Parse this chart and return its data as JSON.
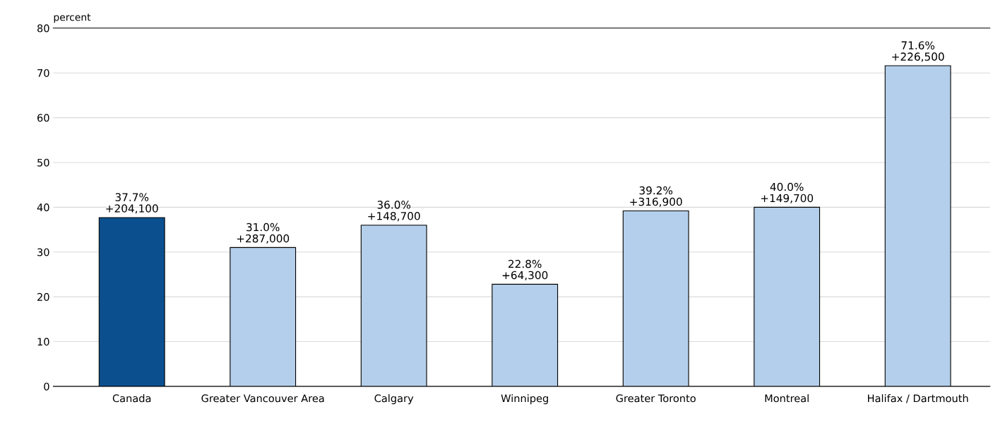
{
  "chart_data": {
    "type": "bar",
    "ylabel": "percent",
    "categories": [
      "Canada",
      "Greater Vancouver Area",
      "Calgary",
      "Winnipeg",
      "Greater Toronto",
      "Montreal",
      "Halifax / Dartmouth"
    ],
    "values": [
      37.7,
      31.0,
      36.0,
      22.8,
      39.2,
      40.0,
      71.6
    ],
    "colors": [
      "#0b4f8f",
      "#b4cfeb",
      "#b4cfeb",
      "#b4cfeb",
      "#b4cfeb",
      "#b4cfeb",
      "#b4cfeb"
    ],
    "value_labels": [
      "37.7%\n+204,100",
      "31.0%\n+287,000",
      "36.0%\n+148,700",
      "22.8%\n+64,300",
      "39.2%\n+316,900",
      "40.0%\n+149,700",
      "71.6%\n+226,500"
    ],
    "ylim": [
      0,
      80
    ],
    "yticks": [
      0,
      10,
      20,
      30,
      40,
      50,
      60,
      70,
      80
    ],
    "grid": "y",
    "legend": false
  }
}
